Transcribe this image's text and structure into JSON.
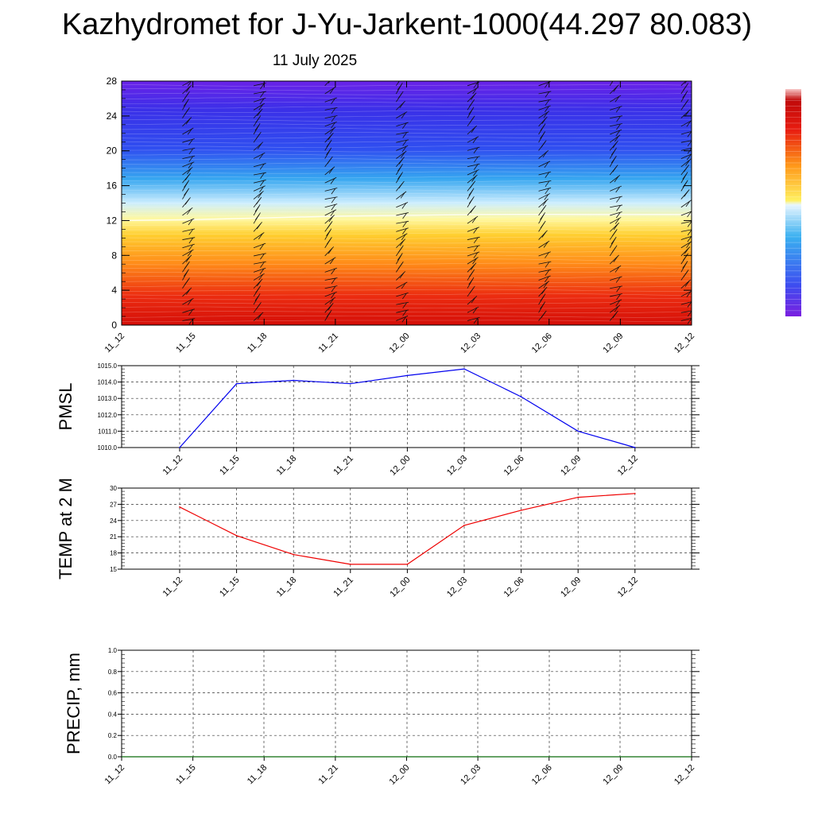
{
  "header": {
    "title": "Kazhydromet for J-Yu-Jarkent-1000(44.297 80.083)",
    "date": "11 July 2025"
  },
  "chart_data": [
    {
      "type": "heatmap",
      "title": "",
      "xlabel": "",
      "ylabel": "",
      "x_ticks": [
        "11_12",
        "11_15",
        "11_18",
        "11_21",
        "12_00",
        "12_03",
        "12_06",
        "12_09",
        "12_12"
      ],
      "y_ticks": [
        "0",
        "4",
        "8",
        "12",
        "16",
        "20",
        "24",
        "28"
      ],
      "ylim": [
        0,
        28
      ],
      "freezing_level": [
        12.0,
        12.1,
        12.3,
        12.5,
        12.6,
        12.7,
        12.7,
        12.7,
        12.7
      ],
      "colorbar": {
        "labels": [],
        "colors": [
          "#7a1fe0",
          "#3c4ef0",
          "#3ab0f0",
          "#e8f6ff",
          "#fff060",
          "#ff9a1a",
          "#e81c10",
          "#c00a0a",
          "#f8c8c8"
        ]
      },
      "grid": false
    },
    {
      "type": "line",
      "title": "",
      "ylabel": "PMSL",
      "categories": [
        "11_12",
        "11_15",
        "11_18",
        "11_21",
        "12_00",
        "12_03",
        "12_06",
        "12_09",
        "12_12"
      ],
      "series": [
        {
          "name": "",
          "color": "#0000ee",
          "values": [
            1010.0,
            1013.9,
            1014.1,
            1013.9,
            1014.4,
            1014.8,
            1013.1,
            1011.0,
            1010.0
          ]
        }
      ],
      "ylim": [
        1010,
        1015
      ],
      "y_ticks": [
        "1010.0",
        "1011.0",
        "1012.0",
        "1013.0",
        "1014.0",
        "1015.0"
      ],
      "grid": true
    },
    {
      "type": "line",
      "title": "",
      "ylabel": "TEMP at 2 M",
      "categories": [
        "11_12",
        "11_15",
        "11_18",
        "11_21",
        "12_00",
        "12_03",
        "12_06",
        "12_09",
        "12_12"
      ],
      "series": [
        {
          "name": "",
          "color": "#ee0000",
          "values": [
            26.5,
            21.2,
            17.7,
            15.9,
            15.9,
            23.1,
            25.9,
            28.3,
            29.0
          ]
        }
      ],
      "ylim": [
        15,
        30
      ],
      "y_ticks": [
        "15",
        "18",
        "21",
        "24",
        "27",
        "30"
      ],
      "grid": true
    },
    {
      "type": "bar",
      "title": "",
      "ylabel": "PRECIP, mm",
      "categories": [
        "11_12",
        "11_15",
        "11_18",
        "11_21",
        "12_00",
        "12_03",
        "12_06",
        "12_09",
        "12_12"
      ],
      "values": [
        0,
        0,
        0,
        0,
        0,
        0,
        0,
        0,
        0
      ],
      "ylim": [
        0,
        1
      ],
      "y_ticks": [
        "0.0",
        "0.2",
        "0.4",
        "0.6",
        "0.8",
        "1.0"
      ],
      "grid": true
    }
  ]
}
